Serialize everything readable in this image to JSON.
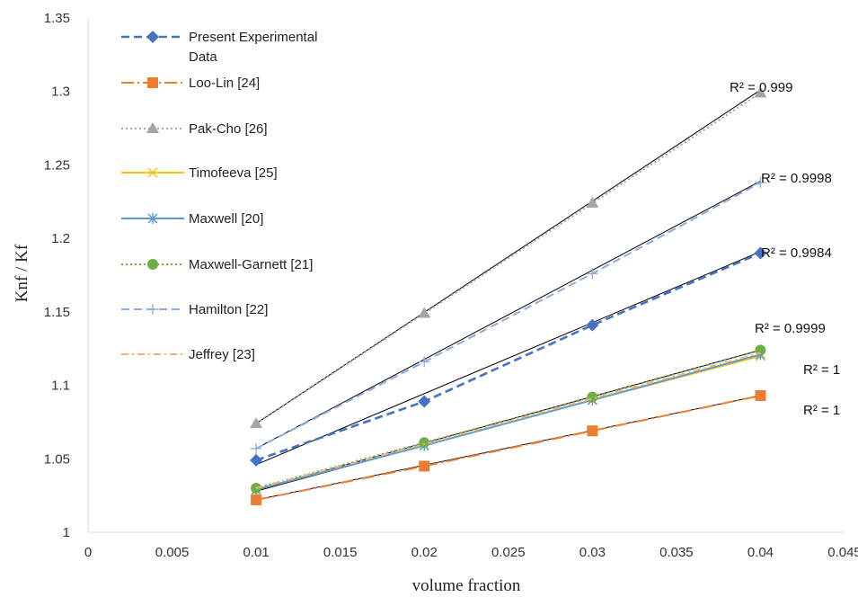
{
  "chart_data": {
    "type": "line",
    "xlabel": "volume fraction",
    "ylabel": "Knf / Kf",
    "xlim": [
      0,
      0.045
    ],
    "ylim": [
      1,
      1.35
    ],
    "x_ticks": [
      "0",
      "0.005",
      "0.01",
      "0.015",
      "0.02",
      "0.025",
      "0.03",
      "0.035",
      "0.04",
      "0.045"
    ],
    "y_ticks": [
      "1",
      "1.05",
      "1.1",
      "1.15",
      "1.2",
      "1.25",
      "1.3",
      "1.35"
    ],
    "grid": false,
    "legend_position": "top-left",
    "x": [
      0.01,
      0.02,
      0.03,
      0.04
    ],
    "series": [
      {
        "name": "Present Experimental Data",
        "values": [
          1.049,
          1.089,
          1.141,
          1.19
        ],
        "color": "#4472C4",
        "marker": "diamond",
        "dash": "dashed"
      },
      {
        "name": "Loo-Lin [24]",
        "values": [
          1.022,
          1.045,
          1.069,
          1.093
        ],
        "color": "#ED7D31",
        "marker": "square",
        "dash": "long-dash-dot"
      },
      {
        "name": "Pak-Cho [26]",
        "values": [
          1.074,
          1.149,
          1.224,
          1.299
        ],
        "color": "#A5A5A5",
        "marker": "triangle",
        "dash": "dotted"
      },
      {
        "name": "Timofeeva [25]",
        "values": [
          1.029,
          1.059,
          1.09,
          1.12
        ],
        "color": "#FFC000",
        "marker": "x",
        "dash": "solid"
      },
      {
        "name": "Maxwell [20]",
        "values": [
          1.029,
          1.059,
          1.09,
          1.121
        ],
        "color": "#5B9BD5",
        "marker": "star",
        "dash": "solid"
      },
      {
        "name": "Maxwell-Garnett [21]",
        "values": [
          1.03,
          1.061,
          1.092,
          1.124
        ],
        "color": "#70AD47",
        "marker": "circle",
        "dash": "dotted"
      },
      {
        "name": "Hamilton [22]",
        "values": [
          1.057,
          1.116,
          1.176,
          1.238
        ],
        "color": "#8FAADC",
        "marker": "plus",
        "dash": "dashed"
      },
      {
        "name": "Jeffrey [23]",
        "values": [
          1.03,
          1.06,
          1.091,
          1.122
        ],
        "color": "#F4B183",
        "marker": "none",
        "dash": "dash-dot"
      }
    ],
    "trendlines": [
      {
        "r2": "R² = 0.999",
        "from": [
          0.01,
          1.074
        ],
        "to": [
          0.04,
          1.301
        ]
      },
      {
        "r2": "R² = 0.9998",
        "from": [
          0.01,
          1.057
        ],
        "to": [
          0.04,
          1.239
        ]
      },
      {
        "r2": "R² = 0.9984",
        "from": [
          0.01,
          1.046
        ],
        "to": [
          0.04,
          1.191
        ]
      },
      {
        "r2": "R² = 0.9999",
        "from": [
          0.01,
          1.029
        ],
        "to": [
          0.04,
          1.124
        ]
      },
      {
        "r2": "R² = 1",
        "from": [
          0.01,
          1.028
        ],
        "to": [
          0.04,
          1.121
        ]
      },
      {
        "r2": "R² = 1",
        "from": [
          0.01,
          1.022
        ],
        "to": [
          0.04,
          1.093
        ]
      }
    ]
  }
}
